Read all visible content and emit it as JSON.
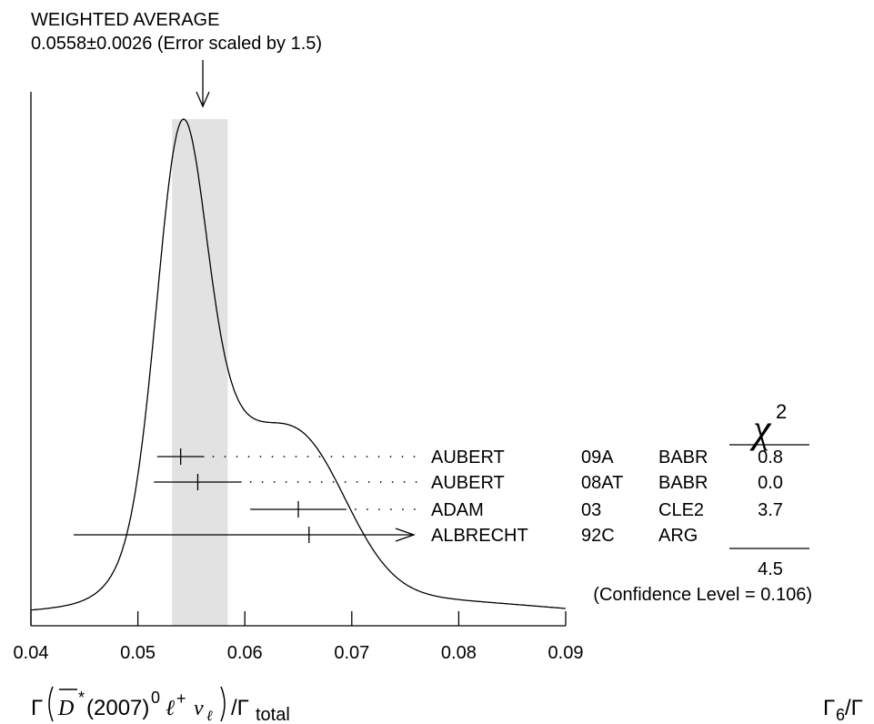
{
  "chart_data": {
    "type": "ideogram",
    "header": {
      "line1": "WEIGHTED AVERAGE",
      "line2": "0.0558±0.0026 (Error scaled by 1.5)"
    },
    "weighted_average": {
      "value": 0.0558,
      "error": 0.0026
    },
    "xlim": [
      0.04,
      0.09
    ],
    "x_ticks": [
      "0.04",
      "0.05",
      "0.06",
      "0.07",
      "0.08",
      "0.09"
    ],
    "xlabel": {
      "gamma": "Γ",
      "particle": "D",
      "star": "*",
      "mass": "(2007)",
      "charge0": "0",
      "lepton": "ℓ",
      "plus": "+",
      "nu": "ν",
      "nu_sub": "ℓ",
      "ratio": "/Γ",
      "total": "total"
    },
    "right_label": {
      "main": "Γ",
      "sub": "6",
      "tail": "/Γ"
    },
    "chi2_header": {
      "symbol": "χ",
      "power": "2"
    },
    "measurements": [
      {
        "author": "AUBERT",
        "ref": "09A",
        "experiment": "BABR",
        "value": 0.054,
        "err_low": 0.0022,
        "err_high": 0.0022,
        "chi2": "0.8"
      },
      {
        "author": "AUBERT",
        "ref": "08AT",
        "experiment": "BABR",
        "value": 0.0556,
        "err_low": 0.0041,
        "err_high": 0.0041,
        "chi2": "0.0"
      },
      {
        "author": "ADAM",
        "ref": "03",
        "experiment": "CLE2",
        "value": 0.065,
        "err_low": 0.0045,
        "err_high": 0.0045,
        "chi2": "3.7"
      },
      {
        "author": "ALBRECHT",
        "ref": "92C",
        "experiment": "ARG",
        "value": 0.066,
        "err_low": 0.022,
        "err_high": null,
        "chi2": ""
      }
    ],
    "chi2_total": "4.5",
    "confidence_level": "(Confidence Level = 0.106)"
  }
}
